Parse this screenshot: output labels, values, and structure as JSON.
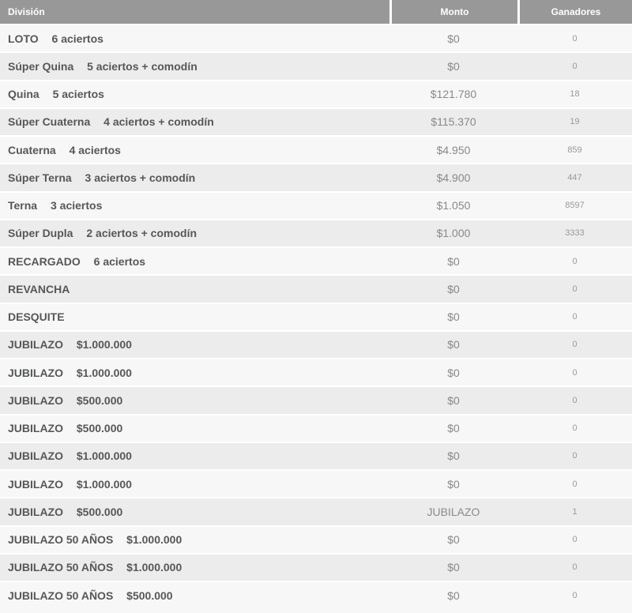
{
  "table": {
    "columns": [
      {
        "label": "División"
      },
      {
        "label": "Monto"
      },
      {
        "label": "Ganadores"
      }
    ],
    "rows": [
      {
        "division": "LOTO",
        "detail": "6 aciertos",
        "monto": "$0",
        "ganadores": "0"
      },
      {
        "division": "Súper Quina",
        "detail": "5 aciertos + comodín",
        "monto": "$0",
        "ganadores": "0"
      },
      {
        "division": "Quina",
        "detail": "5 aciertos",
        "monto": "$121.780",
        "ganadores": "18"
      },
      {
        "division": "Súper Cuaterna",
        "detail": "4 aciertos + comodín",
        "monto": "$115.370",
        "ganadores": "19"
      },
      {
        "division": "Cuaterna",
        "detail": "4 aciertos",
        "monto": "$4.950",
        "ganadores": "859"
      },
      {
        "division": "Súper Terna",
        "detail": "3 aciertos + comodín",
        "monto": "$4.900",
        "ganadores": "447"
      },
      {
        "division": "Terna",
        "detail": "3 aciertos",
        "monto": "$1.050",
        "ganadores": "8597"
      },
      {
        "division": "Súper Dupla",
        "detail": "2 aciertos + comodín",
        "monto": "$1.000",
        "ganadores": "3333"
      },
      {
        "division": "RECARGADO",
        "detail": "6 aciertos",
        "monto": "$0",
        "ganadores": "0"
      },
      {
        "division": "REVANCHA",
        "detail": "",
        "monto": "$0",
        "ganadores": "0"
      },
      {
        "division": "DESQUITE",
        "detail": "",
        "monto": "$0",
        "ganadores": "0"
      },
      {
        "division": "JUBILAZO",
        "detail": "$1.000.000",
        "monto": "$0",
        "ganadores": "0"
      },
      {
        "division": "JUBILAZO",
        "detail": "$1.000.000",
        "monto": "$0",
        "ganadores": "0"
      },
      {
        "division": "JUBILAZO",
        "detail": "$500.000",
        "monto": "$0",
        "ganadores": "0"
      },
      {
        "division": "JUBILAZO",
        "detail": "$500.000",
        "monto": "$0",
        "ganadores": "0"
      },
      {
        "division": "JUBILAZO",
        "detail": "$1.000.000",
        "monto": "$0",
        "ganadores": "0"
      },
      {
        "division": "JUBILAZO",
        "detail": "$1.000.000",
        "monto": "$0",
        "ganadores": "0"
      },
      {
        "division": "JUBILAZO",
        "detail": "$500.000",
        "monto": "JUBILAZO",
        "ganadores": "1"
      },
      {
        "division": "JUBILAZO 50 AÑOS",
        "detail": "$1.000.000",
        "monto": "$0",
        "ganadores": "0"
      },
      {
        "division": "JUBILAZO 50 AÑOS",
        "detail": "$1.000.000",
        "monto": "$0",
        "ganadores": "0"
      },
      {
        "division": "JUBILAZO 50 AÑOS",
        "detail": "$500.000",
        "monto": "$0",
        "ganadores": "0"
      }
    ]
  },
  "colors": {
    "header-bg": "#989898",
    "header-text": "#ffffff",
    "row-light": "#f7f7f7",
    "row-gray": "#ececec",
    "division-text": "#555759",
    "monto-text": "#87898b",
    "ganadores-text": "#98999b"
  }
}
